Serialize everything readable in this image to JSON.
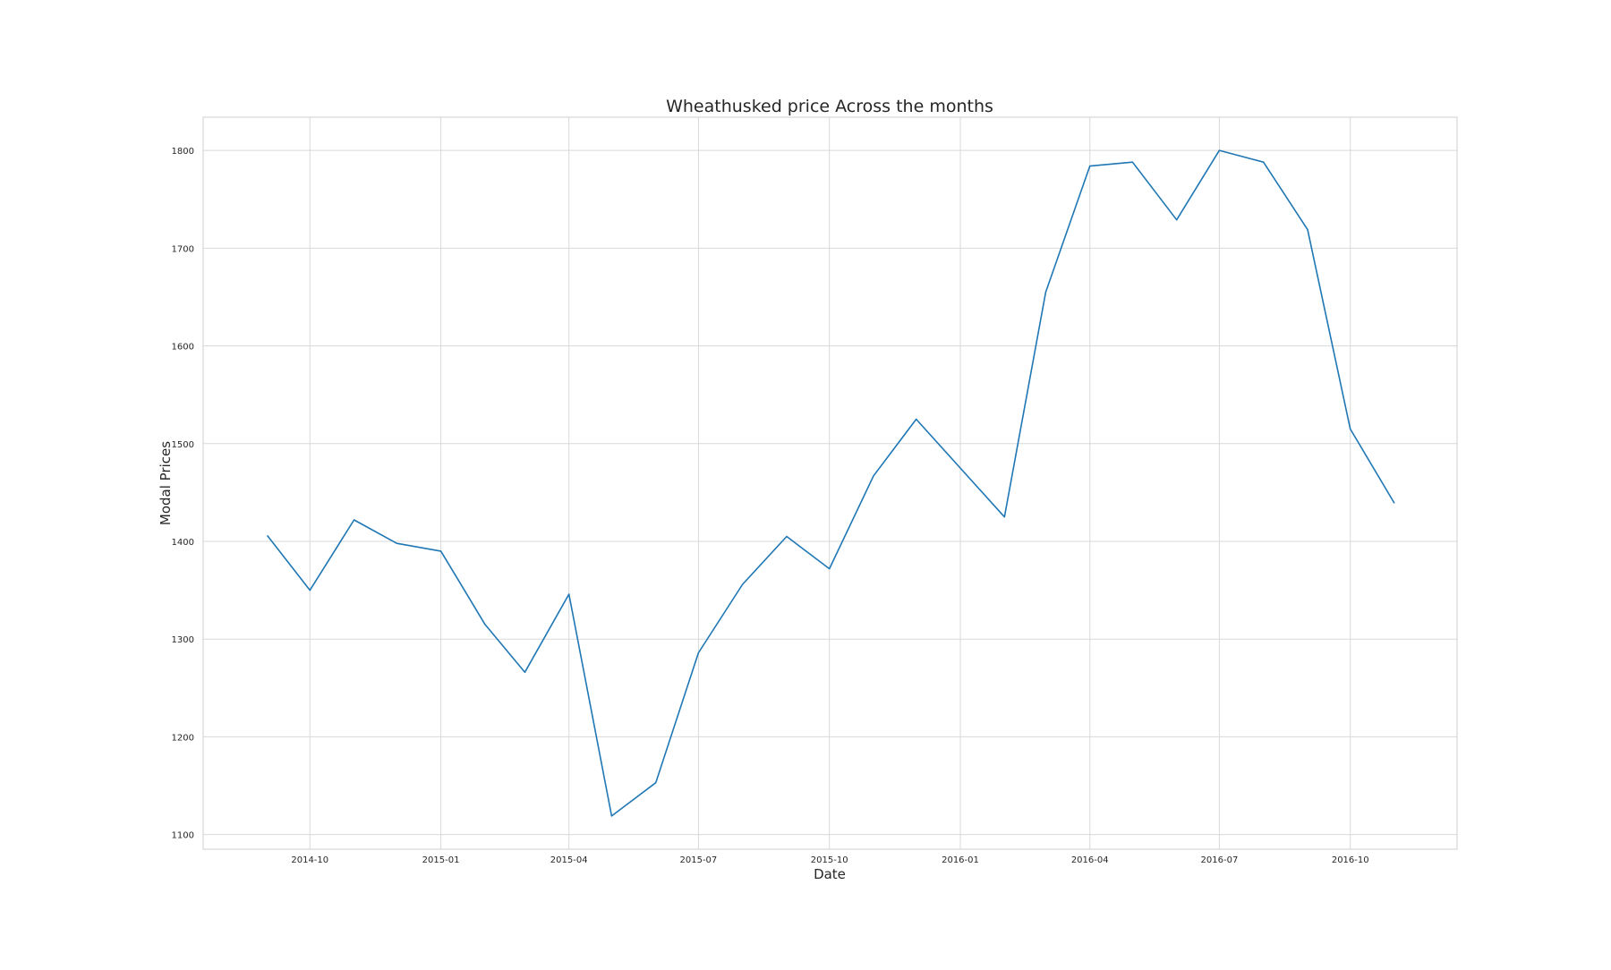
{
  "chart_data": {
    "type": "line",
    "title": "Wheathusked price Across the months",
    "xlabel": "Date",
    "ylabel": "Modal Prices",
    "grid": true,
    "legend": "none",
    "line_color": "#1f77b4",
    "x_ticks": [
      "2014-10",
      "2015-01",
      "2015-04",
      "2015-07",
      "2015-10",
      "2016-01",
      "2016-04",
      "2016-07",
      "2016-10"
    ],
    "y_ticks": [
      1100,
      1200,
      1300,
      1400,
      1500,
      1600,
      1700,
      1800
    ],
    "xlim": [
      "2014-07-18",
      "2016-12-15"
    ],
    "ylim": [
      1085,
      1834
    ],
    "series": [
      {
        "x": [
          "2014-09-01",
          "2014-10-01",
          "2014-11-01",
          "2014-12-01",
          "2015-01-01",
          "2015-02-01",
          "2015-03-01",
          "2015-04-01",
          "2015-05-01",
          "2015-06-01",
          "2015-07-01",
          "2015-08-01",
          "2015-09-01",
          "2015-10-01",
          "2015-11-01",
          "2015-12-01",
          "2016-01-01",
          "2016-02-01",
          "2016-03-01",
          "2016-04-01",
          "2016-05-01",
          "2016-06-01",
          "2016-07-01",
          "2016-08-01",
          "2016-09-01",
          "2016-10-01",
          "2016-11-01"
        ],
        "values": [
          1406,
          1350,
          1422,
          1398,
          1390,
          1315,
          1266,
          1346,
          1119,
          1153,
          1286,
          1356,
          1405,
          1372,
          1467,
          1525,
          1475,
          1425,
          1655,
          1784,
          1788,
          1729,
          1800,
          1788,
          1719,
          1515,
          1439
        ]
      }
    ]
  }
}
